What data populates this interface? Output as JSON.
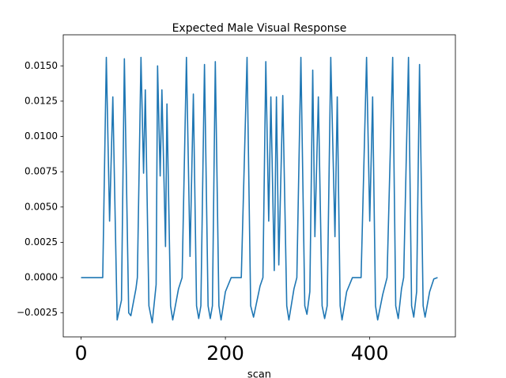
{
  "chart_data": {
    "type": "line",
    "title": "Expected Male Visual Response",
    "x_label": "scan",
    "color": "#1f77b4",
    "xlim": [
      -24.7,
      518.7
    ],
    "ylim": [
      -0.0042,
      0.0172
    ],
    "xticks": [
      0,
      200,
      400
    ],
    "yticks": [
      {
        "value": -0.0025,
        "label": "−0.0025"
      },
      {
        "value": 0,
        "label": "0.0000"
      },
      {
        "value": 0.0025,
        "label": "0.0025"
      },
      {
        "value": 0.005,
        "label": "0.0050"
      },
      {
        "value": 0.0075,
        "label": "0.0075"
      },
      {
        "value": 0.01,
        "label": "0.0100"
      },
      {
        "value": 0.0125,
        "label": "0.0125"
      },
      {
        "value": 0.015,
        "label": "0.0150"
      }
    ],
    "x": [
      0,
      30,
      35,
      39.5,
      44,
      50,
      56,
      60,
      66,
      69,
      76,
      78,
      83,
      86.6,
      89,
      94,
      98.6,
      104,
      106,
      109.6,
      112,
      117,
      119,
      124,
      127,
      135,
      140,
      146,
      151,
      155.6,
      160,
      163,
      166,
      171,
      176,
      179,
      182,
      186,
      191,
      194,
      200,
      208,
      222,
      230,
      235,
      239,
      248,
      252,
      256,
      260,
      263,
      267.7,
      270.7,
      274,
      279.5,
      285,
      288,
      295,
      299,
      304.6,
      310,
      313,
      317,
      321,
      324,
      328.8,
      334,
      337.5,
      341,
      346,
      351.8,
      355,
      359,
      361.6,
      368,
      376,
      388,
      395.6,
      400,
      404,
      408,
      411,
      418,
      424,
      431.8,
      436,
      439.5,
      444,
      447,
      453.7,
      458,
      461,
      465,
      469,
      474,
      476.7,
      483,
      488.8,
      494
    ],
    "values": [
      0,
      0,
      0.0156,
      0.004,
      0.0128,
      -0.003,
      -0.0016,
      0.0155,
      -0.0025,
      -0.0027,
      -0.0008,
      0,
      0.0156,
      0.0074,
      0.0133,
      -0.002,
      -0.0032,
      -0.0005,
      0.015,
      0.0072,
      0.0133,
      0.0022,
      0.0123,
      -0.002,
      -0.003,
      -0.0008,
      0,
      0.0156,
      0.0015,
      0.013,
      -0.002,
      -0.0029,
      -0.002,
      0.0151,
      -0.002,
      -0.0029,
      -0.002,
      0.0153,
      -0.002,
      -0.003,
      -0.001,
      0,
      0,
      0.0156,
      -0.002,
      -0.0028,
      -0.0006,
      0,
      0.0153,
      0.004,
      0.0128,
      0.0005,
      0.0128,
      0.0009,
      0.0129,
      -0.002,
      -0.003,
      -0.0008,
      0,
      0.0156,
      -0.002,
      -0.0026,
      -0.001,
      0.0147,
      0.0029,
      0.0128,
      -0.002,
      -0.0029,
      -0.002,
      0.0156,
      0.0029,
      0.0128,
      -0.002,
      -0.003,
      -0.001,
      0,
      0,
      0.0156,
      0.004,
      0.0128,
      -0.002,
      -0.003,
      -0.0012,
      0,
      0.0156,
      -0.002,
      -0.0029,
      -0.0008,
      0,
      0.0156,
      -0.002,
      -0.0028,
      -0.001,
      0.0151,
      -0.002,
      -0.0028,
      -0.001,
      -0.0001,
      0
    ]
  }
}
